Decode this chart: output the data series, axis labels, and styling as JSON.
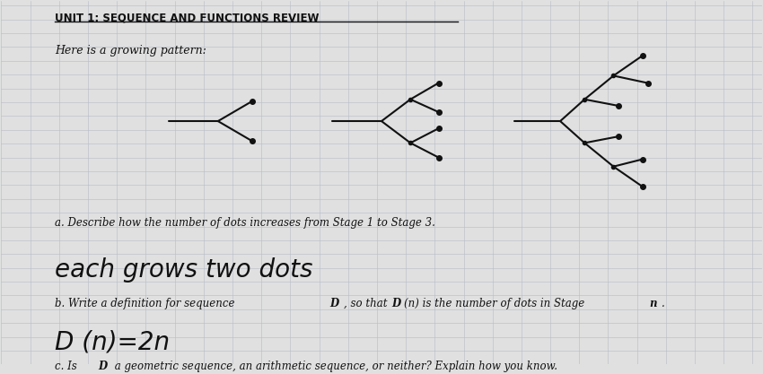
{
  "page_color": "#e0e0e0",
  "title": "UNIT 1: SEQUENCE AND FUNCTIONS REVIEW",
  "intro_text": "Here is a growing pattern:",
  "question_a": "a. Describe how the number of dots increases from Stage 1 to Stage 3.",
  "answer_a": "each grows two dots",
  "answer_b": "D (n)=2n",
  "grid_color": "#b8bcc8",
  "line_color": "#111111",
  "dot_color": "#111111"
}
